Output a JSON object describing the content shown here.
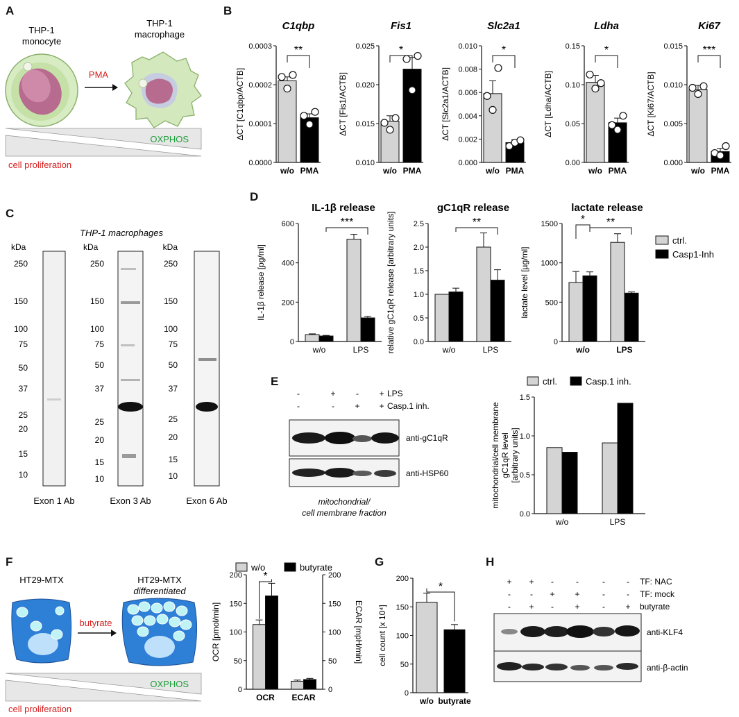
{
  "panels": {
    "A": {
      "letter": "A",
      "monocyte_label": [
        "THP-1",
        "monocyte"
      ],
      "macrophage_label": [
        "THP-1",
        "macrophage"
      ],
      "arrow_label": "PMA",
      "oxphos_label": "OXPHOS",
      "proliferation_label": "cell proliferation",
      "colors": {
        "oxphos": "#1e9c3a",
        "proliferation": "#d62020",
        "pma": "#d62020"
      }
    },
    "B": {
      "letter": "B",
      "charts": [
        {
          "title": "C1qbp",
          "ylabel": "ΔCT [C1qbp/ACTB]",
          "ticks": [
            "0.0003",
            "0.0002",
            "0.0001",
            "0.0000"
          ],
          "sig": "**"
        },
        {
          "title": "Fis1",
          "ylabel": "ΔCT [Fis1/ACTB]",
          "ticks": [
            "0.025",
            "0.020",
            "0.015",
            "0.010"
          ],
          "sig": "*"
        },
        {
          "title": "Slc2a1",
          "ylabel": "ΔCT [Slc2a1/ACTB]",
          "ticks": [
            "0.010",
            "0.008",
            "0.006",
            "0.004",
            "0.002",
            "0.000"
          ],
          "sig": "*"
        },
        {
          "title": "Ldha",
          "ylabel": "ΔCT [Ldha/ACTB]",
          "ticks": [
            "0.15",
            "0.10",
            "0.05",
            "0.00"
          ],
          "sig": "*"
        },
        {
          "title": "Ki67",
          "ylabel": "ΔCT [Ki67/ACTB]",
          "ticks": [
            "0.015",
            "0.010",
            "0.005",
            "0.000"
          ],
          "sig": "***"
        }
      ],
      "xlabels": [
        "w/o",
        "PMA"
      ]
    },
    "C": {
      "letter": "C",
      "title": "THP-1 macrophages",
      "kda": "kDa",
      "markers1": [
        "250",
        "150",
        "100",
        "75",
        "50",
        "37",
        "25",
        "20",
        "15",
        "10"
      ],
      "markers2": [
        "250",
        "150",
        "100",
        "75",
        "50",
        "37",
        "25",
        "20",
        "15",
        "10"
      ],
      "markers3": [
        "250",
        "150",
        "100",
        "75",
        "50",
        "37",
        "25",
        "20",
        "15",
        "10"
      ],
      "labels": [
        "Exon 1 Ab",
        "Exon 3 Ab",
        "Exon 6 Ab"
      ]
    },
    "D": {
      "letter": "D",
      "titles": [
        "IL-1β release",
        "gC1qR release",
        "lactate release"
      ],
      "ylabels": [
        "IL-1β release [pg/ml]",
        "relative gC1qR release [arbitrary units]",
        "lactate level [µg/ml]"
      ],
      "ticks1": [
        "600",
        "400",
        "200",
        "0"
      ],
      "ticks2": [
        "2.5",
        "2.0",
        "1.5",
        "1.0",
        "0.5",
        "0.0"
      ],
      "ticks3": [
        "1500",
        "1000",
        "500",
        "0"
      ],
      "xlabels": [
        "w/o",
        "LPS"
      ],
      "sig1": [
        "***"
      ],
      "sig2": [
        "**"
      ],
      "sig3": [
        "*",
        "**"
      ],
      "legend": [
        "ctrl.",
        "Casp1-Inh"
      ]
    },
    "E": {
      "letter": "E",
      "row_labels": [
        "LPS",
        "Casp.1 inh."
      ],
      "lps_signs": [
        "-",
        "+",
        "-",
        "+"
      ],
      "casp_signs": [
        "-",
        "-",
        "+",
        "+"
      ],
      "blot_labels": [
        "anti-gC1qR",
        "anti-HSP60"
      ],
      "fraction_label": [
        "mitochondrial/",
        "cell membrane fraction"
      ],
      "legend": [
        "ctrl.",
        "Casp.1 inh."
      ],
      "ylabel": [
        "mitochondrial/cell membrane",
        "gC1qR level",
        "[arbitrary units]"
      ],
      "ticks": [
        "1.5",
        "1.0",
        "0.5",
        "0.0"
      ],
      "xlabels": [
        "w/o",
        "LPS"
      ]
    },
    "F": {
      "letter": "F",
      "left_label": "HT29-MTX",
      "right_label": [
        "HT29-MTX",
        "differentiated"
      ],
      "arrow_label": "butyrate",
      "oxphos_label": "OXPHOS",
      "proliferation_label": "cell proliferation",
      "legend": [
        "w/o",
        "butyrate"
      ],
      "ylabel_left": "OCR [pmol/min]",
      "ylabel_right": "ECAR [mpH/min]",
      "ticks": [
        "200",
        "150",
        "100",
        "50",
        "0"
      ],
      "xlabels": [
        "OCR",
        "ECAR"
      ],
      "sig": "*"
    },
    "G": {
      "letter": "G",
      "ylabel": "cell count [x 10⁴]",
      "ticks": [
        "200",
        "150",
        "100",
        "50",
        "0"
      ],
      "xlabels": [
        "w/o",
        "butyrate"
      ],
      "sig": "*"
    },
    "H": {
      "letter": "H",
      "row_labels": [
        "TF: NAC",
        "TF: mock",
        "butyrate"
      ],
      "nac_signs": [
        "+",
        "+",
        "-",
        "-",
        "-",
        "-"
      ],
      "mock_signs": [
        "-",
        "-",
        "+",
        "+",
        "-",
        "-"
      ],
      "but_signs": [
        "-",
        "+",
        "-",
        "+",
        "-",
        "+"
      ],
      "blot_labels": [
        "anti-KLF4",
        "anti-β-actin"
      ]
    }
  },
  "chart_data": [
    {
      "type": "bar",
      "title": "C1qbp",
      "ylabel": "ΔCT [C1qbp/ACTB]",
      "categories": [
        "w/o",
        "PMA"
      ],
      "values": [
        0.00021,
        0.000115
      ],
      "ylim": [
        0,
        0.0003
      ]
    },
    {
      "type": "bar",
      "title": "Fis1",
      "ylabel": "ΔCT [Fis1/ACTB]",
      "categories": [
        "w/o",
        "PMA"
      ],
      "values": [
        0.0153,
        0.022
      ],
      "ylim": [
        0.01,
        0.025
      ]
    },
    {
      "type": "bar",
      "title": "Slc2a1",
      "ylabel": "ΔCT [Slc2a1/ACTB]",
      "categories": [
        "w/o",
        "PMA"
      ],
      "values": [
        0.0059,
        0.0017
      ],
      "ylim": [
        0,
        0.01
      ]
    },
    {
      "type": "bar",
      "title": "Ldha",
      "ylabel": "ΔCT [Ldha/ACTB]",
      "categories": [
        "w/o",
        "PMA"
      ],
      "values": [
        0.103,
        0.051
      ],
      "ylim": [
        0,
        0.15
      ]
    },
    {
      "type": "bar",
      "title": "Ki67",
      "ylabel": "ΔCT [Ki67/ACTB]",
      "categories": [
        "w/o",
        "PMA"
      ],
      "values": [
        0.0094,
        0.0014
      ],
      "ylim": [
        0,
        0.015
      ]
    },
    {
      "type": "bar",
      "title": "IL-1β release",
      "ylabel": "IL-1β release [pg/ml]",
      "categories": [
        "w/o",
        "LPS"
      ],
      "series": [
        {
          "name": "ctrl.",
          "values": [
            35,
            520
          ]
        },
        {
          "name": "Casp1-Inh",
          "values": [
            28,
            120
          ]
        }
      ],
      "ylim": [
        0,
        600
      ]
    },
    {
      "type": "bar",
      "title": "gC1qR release",
      "ylabel": "relative gC1qR release [arbitrary units]",
      "categories": [
        "w/o",
        "LPS"
      ],
      "series": [
        {
          "name": "ctrl.",
          "values": [
            1.0,
            2.0
          ]
        },
        {
          "name": "Casp1-Inh",
          "values": [
            1.05,
            1.3
          ]
        }
      ],
      "ylim": [
        0,
        2.5
      ]
    },
    {
      "type": "bar",
      "title": "lactate release",
      "ylabel": "lactate level [µg/ml]",
      "categories": [
        "w/o",
        "LPS"
      ],
      "series": [
        {
          "name": "ctrl.",
          "values": [
            750,
            1260
          ]
        },
        {
          "name": "Casp1-Inh",
          "values": [
            835,
            615
          ]
        }
      ],
      "ylim": [
        0,
        1500
      ]
    },
    {
      "type": "bar",
      "ylabel": "mitochondrial/cell membrane gC1qR level [arbitrary units]",
      "categories": [
        "w/o",
        "LPS"
      ],
      "series": [
        {
          "name": "ctrl.",
          "values": [
            0.85,
            0.91
          ]
        },
        {
          "name": "Casp.1 inh.",
          "values": [
            0.79,
            1.42
          ]
        }
      ],
      "ylim": [
        0,
        1.5
      ]
    },
    {
      "type": "bar",
      "ylabel": "OCR [pmol/min]",
      "categories": [
        "OCR",
        "ECAR"
      ],
      "series": [
        {
          "name": "w/o",
          "values": [
            113,
            14
          ]
        },
        {
          "name": "butyrate",
          "values": [
            163,
            17
          ]
        }
      ],
      "ylim": [
        0,
        200
      ]
    },
    {
      "type": "bar",
      "ylabel": "cell count [x 10⁴]",
      "categories": [
        "w/o",
        "butyrate"
      ],
      "values": [
        158,
        110
      ],
      "ylim": [
        0,
        200
      ]
    }
  ]
}
